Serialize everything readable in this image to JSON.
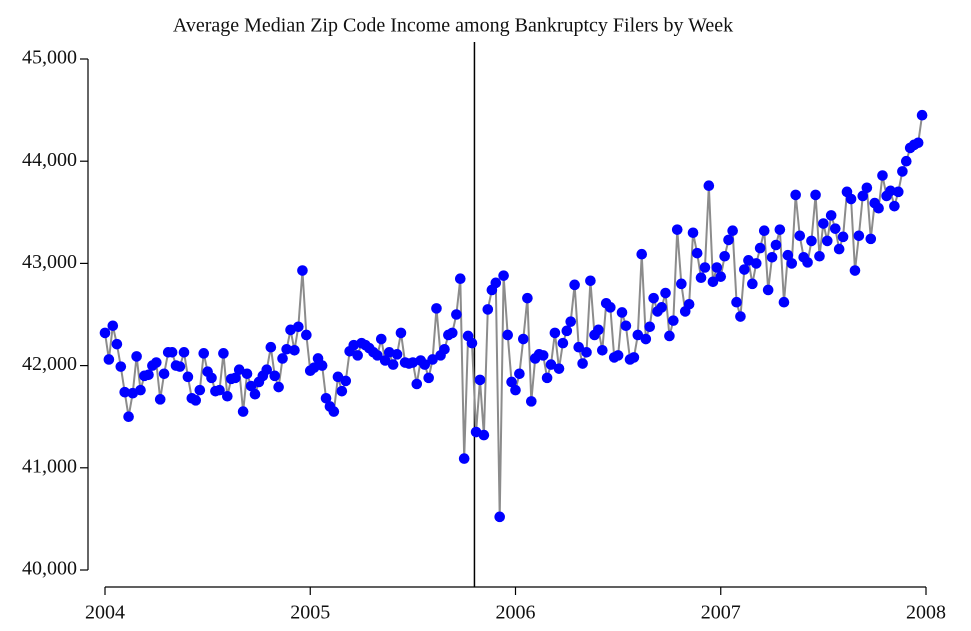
{
  "chart_data": {
    "type": "line",
    "title": "Average Median Zip Code Income among Bankruptcy Filers by Week",
    "x": [
      2004.0,
      2004.019,
      2004.038,
      2004.058,
      2004.077,
      2004.096,
      2004.115,
      2004.135,
      2004.154,
      2004.173,
      2004.192,
      2004.212,
      2004.231,
      2004.25,
      2004.269,
      2004.288,
      2004.308,
      2004.327,
      2004.346,
      2004.365,
      2004.385,
      2004.404,
      2004.423,
      2004.442,
      2004.462,
      2004.481,
      2004.5,
      2004.519,
      2004.538,
      2004.558,
      2004.577,
      2004.596,
      2004.615,
      2004.635,
      2004.654,
      2004.673,
      2004.692,
      2004.712,
      2004.731,
      2004.75,
      2004.769,
      2004.788,
      2004.808,
      2004.827,
      2004.846,
      2004.865,
      2004.885,
      2004.904,
      2004.923,
      2004.942,
      2004.962,
      2004.981,
      2005.0,
      2005.019,
      2005.038,
      2005.058,
      2005.077,
      2005.096,
      2005.115,
      2005.135,
      2005.154,
      2005.173,
      2005.192,
      2005.212,
      2005.231,
      2005.25,
      2005.269,
      2005.288,
      2005.308,
      2005.327,
      2005.346,
      2005.365,
      2005.385,
      2005.404,
      2005.423,
      2005.442,
      2005.462,
      2005.481,
      2005.5,
      2005.519,
      2005.538,
      2005.558,
      2005.577,
      2005.596,
      2005.615,
      2005.635,
      2005.654,
      2005.673,
      2005.692,
      2005.712,
      2005.731,
      2005.75,
      2005.769,
      2005.788,
      2005.808,
      2005.827,
      2005.846,
      2005.865,
      2005.885,
      2005.904,
      2005.923,
      2005.942,
      2005.962,
      2005.981,
      2006.0,
      2006.019,
      2006.038,
      2006.058,
      2006.077,
      2006.096,
      2006.115,
      2006.135,
      2006.154,
      2006.173,
      2006.192,
      2006.212,
      2006.231,
      2006.25,
      2006.269,
      2006.288,
      2006.308,
      2006.327,
      2006.346,
      2006.365,
      2006.385,
      2006.404,
      2006.423,
      2006.442,
      2006.462,
      2006.481,
      2006.5,
      2006.519,
      2006.538,
      2006.558,
      2006.577,
      2006.596,
      2006.615,
      2006.635,
      2006.654,
      2006.673,
      2006.692,
      2006.712,
      2006.731,
      2006.75,
      2006.769,
      2006.788,
      2006.808,
      2006.827,
      2006.846,
      2006.865,
      2006.885,
      2006.904,
      2006.923,
      2006.942,
      2006.962,
      2006.981,
      2007.0,
      2007.019,
      2007.038,
      2007.058,
      2007.077,
      2007.096,
      2007.115,
      2007.135,
      2007.154,
      2007.173,
      2007.192,
      2007.212,
      2007.231,
      2007.25,
      2007.269,
      2007.288,
      2007.308,
      2007.327,
      2007.346,
      2007.365,
      2007.385,
      2007.404,
      2007.423,
      2007.442,
      2007.462,
      2007.481,
      2007.5,
      2007.519,
      2007.538,
      2007.558,
      2007.577,
      2007.596,
      2007.615,
      2007.635,
      2007.654,
      2007.673,
      2007.692,
      2007.712,
      2007.731,
      2007.75,
      2007.769,
      2007.788,
      2007.808,
      2007.827,
      2007.846,
      2007.865,
      2007.885,
      2007.904,
      2007.923,
      2007.942,
      2007.962,
      2007.981
    ],
    "values": [
      42320,
      42060,
      42390,
      42210,
      41990,
      41740,
      41500,
      41730,
      42090,
      41760,
      41900,
      41910,
      42000,
      42030,
      41670,
      41920,
      42130,
      42130,
      42000,
      41990,
      42130,
      41890,
      41680,
      41660,
      41760,
      42120,
      41940,
      41880,
      41750,
      41760,
      42120,
      41700,
      41870,
      41880,
      41960,
      41550,
      41920,
      41800,
      41720,
      41840,
      41900,
      41960,
      42180,
      41900,
      41790,
      42070,
      42160,
      42350,
      42150,
      42380,
      42930,
      42300,
      41950,
      41980,
      42070,
      42000,
      41680,
      41600,
      41550,
      41890,
      41750,
      41850,
      42140,
      42200,
      42100,
      42220,
      42200,
      42170,
      42130,
      42100,
      42260,
      42050,
      42130,
      42010,
      42110,
      42320,
      42030,
      42020,
      42030,
      41820,
      42050,
      42010,
      41880,
      42060,
      42560,
      42100,
      42160,
      42300,
      42320,
      42500,
      42850,
      41090,
      42290,
      42220,
      41350,
      41860,
      41320,
      42550,
      42740,
      42810,
      40520,
      42880,
      42300,
      41840,
      41760,
      41920,
      42260,
      42660,
      41650,
      42070,
      42110,
      42100,
      41880,
      42010,
      42320,
      41970,
      42220,
      42340,
      42430,
      42790,
      42180,
      42020,
      42130,
      42830,
      42300,
      42350,
      42150,
      42610,
      42570,
      42080,
      42100,
      42520,
      42390,
      42060,
      42080,
      42300,
      43090,
      42260,
      42380,
      42660,
      42530,
      42570,
      42710,
      42290,
      42440,
      43330,
      42800,
      42530,
      42600,
      43300,
      43100,
      42860,
      42960,
      43760,
      42820,
      42960,
      42870,
      43070,
      43230,
      43320,
      42620,
      42480,
      42940,
      43030,
      42800,
      43000,
      43150,
      43320,
      42740,
      43060,
      43180,
      43330,
      42620,
      43080,
      43000,
      43670,
      43270,
      43060,
      43010,
      43220,
      43670,
      43070,
      43390,
      43220,
      43470,
      43340,
      43140,
      43260,
      43700,
      43630,
      42930,
      43270,
      43660,
      43740,
      43240,
      43590,
      43540,
      43860,
      43660,
      43710,
      43560,
      43700,
      43900,
      44000,
      44130,
      44160,
      44180,
      44450
    ],
    "line_color": "#8c8c8c",
    "marker_color": "#0000ff",
    "xlim": [
      2004,
      2008
    ],
    "xticks": [
      2004,
      2005,
      2006,
      2007,
      2008
    ],
    "ylim": [
      40000,
      45000
    ],
    "yticks": [
      {
        "value": 40000,
        "label": "40,000"
      },
      {
        "value": 41000,
        "label": "41,000"
      },
      {
        "value": 42000,
        "label": "42,000"
      },
      {
        "value": 43000,
        "label": "43,000"
      },
      {
        "value": 44000,
        "label": "44,000"
      },
      {
        "value": 45000,
        "label": "45,000"
      }
    ],
    "vline": 2005.8
  }
}
